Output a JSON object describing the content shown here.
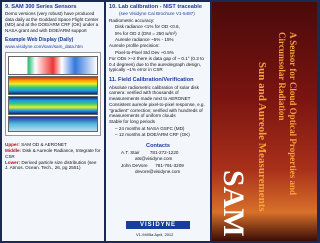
{
  "left": {
    "heading": "9. SAM 300 Series Sensors",
    "body": "Demo versions (very robust) have produced data daily at the Goddard Space Flight Center (MD) and at the DOE/ARM CRF (OK) under a NASA grant and with DOE/ARM support",
    "example_title": "Example Web Display (Daily)",
    "example_url": "www.visidyne.com/sam/sam_data.htm",
    "captions": [
      {
        "key": "Upper:",
        "text": "SAM OD & AERONET"
      },
      {
        "key": "Middle:",
        "text": "Disk & Aureole Radiance, Integrate for CSR"
      },
      {
        "key": "Lower:",
        "text": "Derived particle size distribution (see J. Atmos. Ocean. Tech., 26, pg 2551)"
      }
    ]
  },
  "middle": {
    "section10": {
      "heading": "10. Lab calibration - NIST traceable",
      "note": "(see Visidyne Cal Brochure V1-5487)",
      "lines": [
        "Radiometric accuracy:",
        "Disk radiance <1% for OD <0.6,",
        "5% for OD 2 (DNI = 250 w/m²)",
        "Aureole radiance ~5% - 15%",
        "Aureole profile precision:",
        "Pixel-to-Pixel Std Dev ~0.5%",
        "For ODs >~2 there is data gap of ~ 0.1° (0.3 to 0.4 degrees) due to the aureolegraph design, typically ~1% error in CSR"
      ]
    },
    "section11": {
      "heading": "11. Field Calibration/Verification",
      "lines": [
        "Absolute radiometric calibration of solar disk camera: verified with thousands of measurements made next to AERONET",
        "Consistent aureole pixel-to-pixel response, e.g. \"gradient\" correction; verified with hundreds of measurements of uniform clouds",
        "Stable for long periods",
        "– 24 months at NASA GSFC (MD)",
        "– 12 months at DOE/ARM CRF (OK)"
      ]
    },
    "contacts": {
      "heading": "Contacts",
      "lines": [
        "A.T. Stair        781-272-1220",
        "ats@visidyne.com",
        "John DeVore      781-791-3209",
        "devore@visidyne.com"
      ]
    },
    "logo": "VISIDYNE",
    "doc_id": "V1-9495a April, 2012"
  },
  "right": {
    "title": "SAM",
    "subtitle": "Sun and Aureole Measurements",
    "tagline": "A Sensor for Cloud Optical Properties and Circumsolar Radiation"
  }
}
